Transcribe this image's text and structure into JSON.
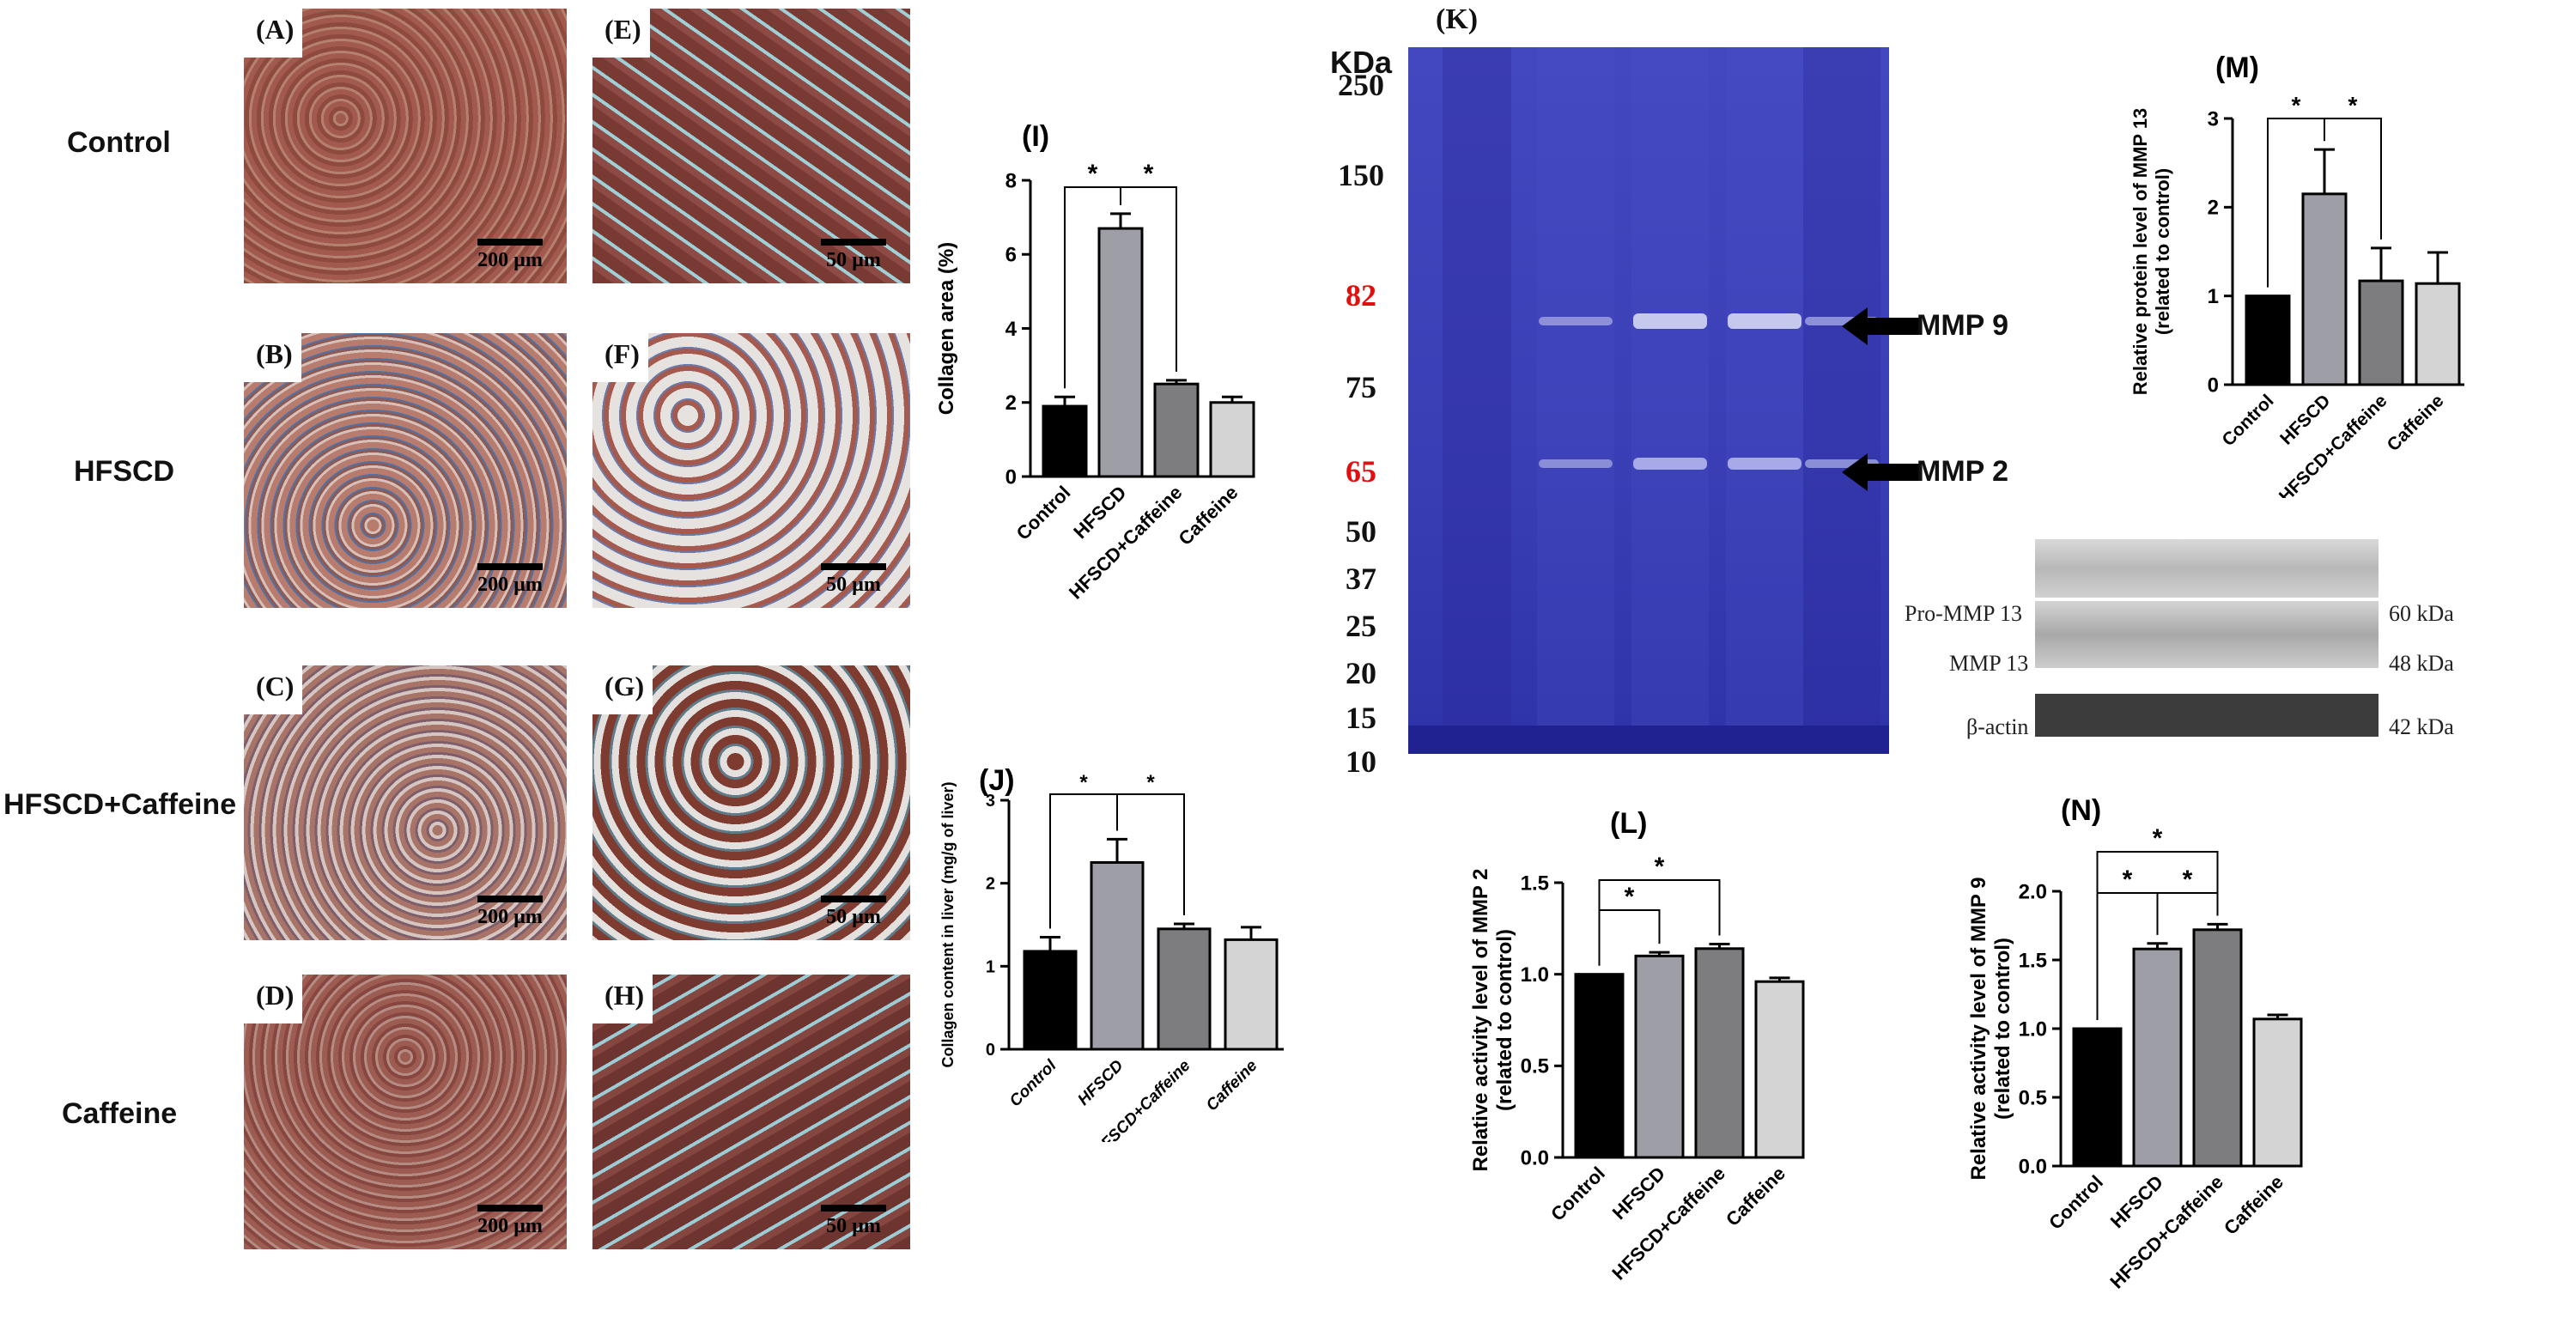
{
  "row_labels": [
    "Control",
    "HFSCD",
    "HFSCD+Caffeine",
    "Caffeine"
  ],
  "micrographs": {
    "left": [
      {
        "tag": "(A)",
        "scale": "200 µm"
      },
      {
        "tag": "(B)",
        "scale": "200 µm"
      },
      {
        "tag": "(C)",
        "scale": "200 µm"
      },
      {
        "tag": "(D)",
        "scale": "200 µm"
      }
    ],
    "right": [
      {
        "tag": "(E)",
        "scale": "50 µm"
      },
      {
        "tag": "(F)",
        "scale": "50 µm"
      },
      {
        "tag": "(G)",
        "scale": "50 µm"
      },
      {
        "tag": "(H)",
        "scale": "50 µm"
      }
    ]
  },
  "gel": {
    "panel": "(K)",
    "unit": "KDa",
    "markers": [
      "250",
      "150",
      "82",
      "75",
      "65",
      "50",
      "37",
      "25",
      "20",
      "15",
      "10"
    ],
    "highlight_markers": [
      "82",
      "65"
    ],
    "highlight_color": "#e01010",
    "arrows": [
      "MMP 9",
      "MMP 2"
    ]
  },
  "blot": {
    "rows": [
      {
        "label": "Pro-MMP 13",
        "size": "60 kDa"
      },
      {
        "label": "MMP 13",
        "size": "48 kDa"
      },
      {
        "label": "β-actin",
        "size": "42 kDa"
      }
    ]
  },
  "colors": {
    "control": "#000000",
    "hfscd": "#9e9ea6",
    "hfscd_caffeine": "#7d7d80",
    "caffeine": "#d4d4d4"
  },
  "chart_data": [
    {
      "panel": "(I)",
      "type": "bar",
      "categories": [
        "Control",
        "HFSCD",
        "HFSCD+Caffeine",
        "Caffeine"
      ],
      "values": [
        1.9,
        6.7,
        2.5,
        2.0
      ],
      "errors": [
        0.25,
        0.4,
        0.1,
        0.15
      ],
      "ylabel": "Collagen area (%)",
      "ylim": [
        0,
        8
      ],
      "yticks": [
        "0",
        "2",
        "4",
        "6",
        "8"
      ],
      "significance": [
        {
          "from": 0,
          "to": 1,
          "label": "*"
        },
        {
          "from": 1,
          "to": 2,
          "label": "*"
        }
      ],
      "label_style": "normal"
    },
    {
      "panel": "(J)",
      "type": "bar",
      "categories": [
        "Control",
        "HFSCD",
        "HFSCD+Caffeine",
        "Caffeine"
      ],
      "values": [
        1.18,
        2.25,
        1.45,
        1.32
      ],
      "errors": [
        0.17,
        0.28,
        0.06,
        0.15
      ],
      "ylabel": "Collagen content in liver (mg/g of liver)",
      "ylim": [
        0,
        3
      ],
      "yticks": [
        "0",
        "1",
        "2",
        "3"
      ],
      "significance": [
        {
          "from": 0,
          "to": 1,
          "label": "*"
        },
        {
          "from": 1,
          "to": 2,
          "label": "*"
        }
      ],
      "label_style": "italic"
    },
    {
      "panel": "(M)",
      "type": "bar",
      "categories": [
        "Control",
        "HFSCD",
        "HFSCD+Caffeine",
        "Caffeine"
      ],
      "values": [
        1.0,
        2.15,
        1.17,
        1.14
      ],
      "errors": [
        0,
        0.5,
        0.37,
        0.35
      ],
      "ylabel": "Relative protein level of MMP 13",
      "ylabel2": "(related to control)",
      "ylim": [
        0,
        3
      ],
      "yticks": [
        "0",
        "1",
        "2",
        "3"
      ],
      "significance": [
        {
          "from": 0,
          "to": 1,
          "label": "*"
        },
        {
          "from": 1,
          "to": 2,
          "label": "*"
        }
      ],
      "label_style": "normal"
    },
    {
      "panel": "(L)",
      "type": "bar",
      "categories": [
        "Control",
        "HFSCD",
        "HFSCD+Caffeine",
        "Caffeine"
      ],
      "values": [
        1.0,
        1.1,
        1.14,
        0.96
      ],
      "errors": [
        0,
        0.02,
        0.025,
        0.02
      ],
      "ylabel": "Relative activity level of MMP 2",
      "ylabel2": "(related to control)",
      "ylim": [
        0,
        1.5
      ],
      "yticks": [
        "0.0",
        "0.5",
        "1.0",
        "1.5"
      ],
      "significance": [
        {
          "from": 0,
          "to": 1,
          "label": "*"
        },
        {
          "from": 0,
          "to": 2,
          "label": "*"
        }
      ],
      "label_style": "normal"
    },
    {
      "panel": "(N)",
      "type": "bar",
      "categories": [
        "Control",
        "HFSCD",
        "HFSCD+Caffeine",
        "Caffeine"
      ],
      "values": [
        1.0,
        1.58,
        1.72,
        1.07
      ],
      "errors": [
        0,
        0.04,
        0.04,
        0.03
      ],
      "ylabel": "Relative activity level of MMP 9",
      "ylabel2": "(related to control)",
      "ylim": [
        0,
        2.0
      ],
      "yticks": [
        "0.0",
        "0.5",
        "1.0",
        "1.5",
        "2.0"
      ],
      "significance": [
        {
          "from": 0,
          "to": 1,
          "label": "*"
        },
        {
          "from": 1,
          "to": 2,
          "label": "*"
        },
        {
          "from": 0,
          "to": 2,
          "label": "*"
        }
      ],
      "label_style": "normal"
    }
  ]
}
